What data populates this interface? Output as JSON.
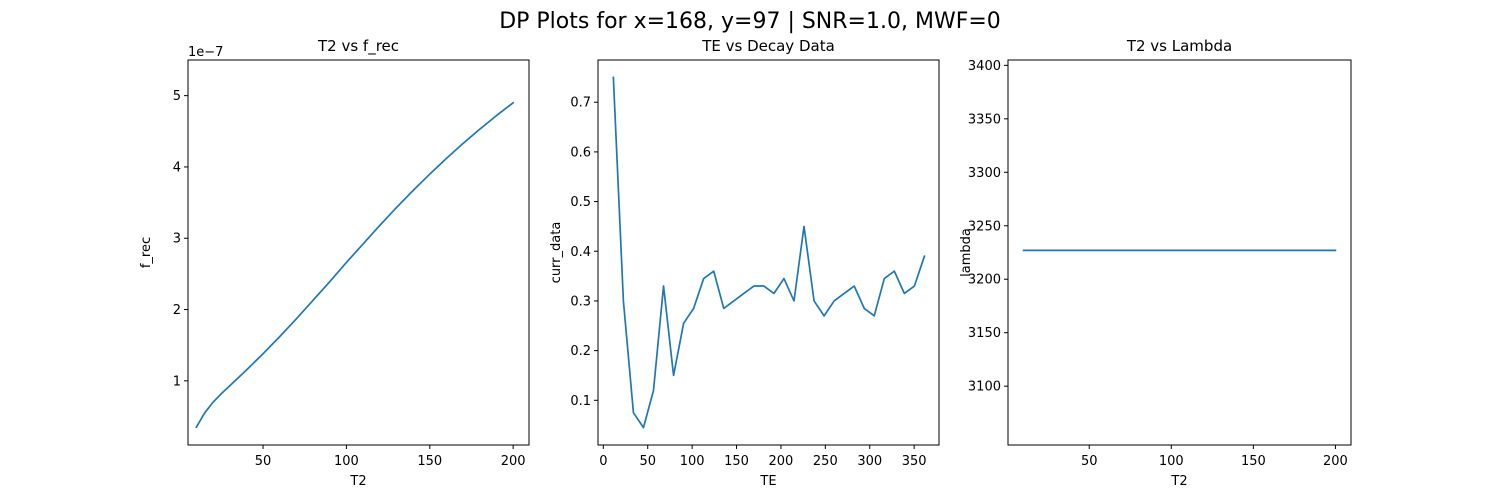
{
  "figure": {
    "suptitle": "DP Plots for x=168, y=97 | SNR=1.0, MWF=0"
  },
  "chart_data": [
    {
      "type": "line",
      "title": "T2 vs f_rec",
      "xlabel": "T2",
      "ylabel": "f_rec",
      "y_offset_label": "1e−7",
      "xlim": [
        5,
        209.5
      ],
      "ylim": [
        0.1,
        5.5
      ],
      "xticks": [
        50,
        100,
        150,
        200
      ],
      "yticks": [
        1,
        2,
        3,
        4,
        5
      ],
      "grid": false,
      "series": [
        {
          "color": "#1f77b4",
          "x": [
            10,
            15,
            20,
            25,
            30,
            40,
            50,
            60,
            70,
            80,
            90,
            100,
            110,
            120,
            130,
            140,
            150,
            160,
            170,
            180,
            190,
            200
          ],
          "y": [
            0.35,
            0.55,
            0.7,
            0.82,
            0.93,
            1.15,
            1.38,
            1.62,
            1.87,
            2.13,
            2.39,
            2.66,
            2.92,
            3.18,
            3.43,
            3.67,
            3.9,
            4.12,
            4.33,
            4.53,
            4.72,
            4.9
          ]
        }
      ]
    },
    {
      "type": "line",
      "title": "TE vs Decay Data",
      "xlabel": "TE",
      "ylabel": "curr_data",
      "xlim": [
        -6,
        378
      ],
      "ylim": [
        0.01,
        0.785
      ],
      "xticks": [
        0,
        50,
        100,
        150,
        200,
        250,
        300,
        350
      ],
      "yticks": [
        0.1,
        0.2,
        0.3,
        0.4,
        0.5,
        0.6,
        0.7
      ],
      "grid": false,
      "series": [
        {
          "color": "#1f77b4",
          "x": [
            11.3,
            22.6,
            33.9,
            45.2,
            56.5,
            67.8,
            79.1,
            90.4,
            101.7,
            113,
            124.3,
            135.6,
            146.9,
            158.2,
            169.5,
            180.8,
            192.1,
            203.4,
            214.7,
            226,
            237.3,
            248.6,
            259.9,
            271.2,
            282.5,
            293.8,
            305.1,
            316.4,
            327.7,
            339,
            350.3,
            361.6
          ],
          "y": [
            0.75,
            0.3,
            0.075,
            0.045,
            0.12,
            0.33,
            0.15,
            0.255,
            0.285,
            0.345,
            0.36,
            0.285,
            0.3,
            0.315,
            0.33,
            0.33,
            0.315,
            0.345,
            0.3,
            0.45,
            0.3,
            0.27,
            0.3,
            0.315,
            0.33,
            0.285,
            0.27,
            0.345,
            0.36,
            0.315,
            0.33,
            0.39
          ]
        }
      ]
    },
    {
      "type": "line",
      "title": "T2 vs Lambda",
      "xlabel": "T2",
      "ylabel": "lambda",
      "xlim": [
        0.5,
        209.5
      ],
      "ylim": [
        3045,
        3405
      ],
      "xticks": [
        50,
        100,
        150,
        200
      ],
      "yticks": [
        3100,
        3150,
        3200,
        3250,
        3300,
        3350,
        3400
      ],
      "grid": false,
      "series": [
        {
          "color": "#1f77b4",
          "x": [
            10,
            200
          ],
          "y": [
            3227,
            3227
          ]
        }
      ]
    }
  ]
}
